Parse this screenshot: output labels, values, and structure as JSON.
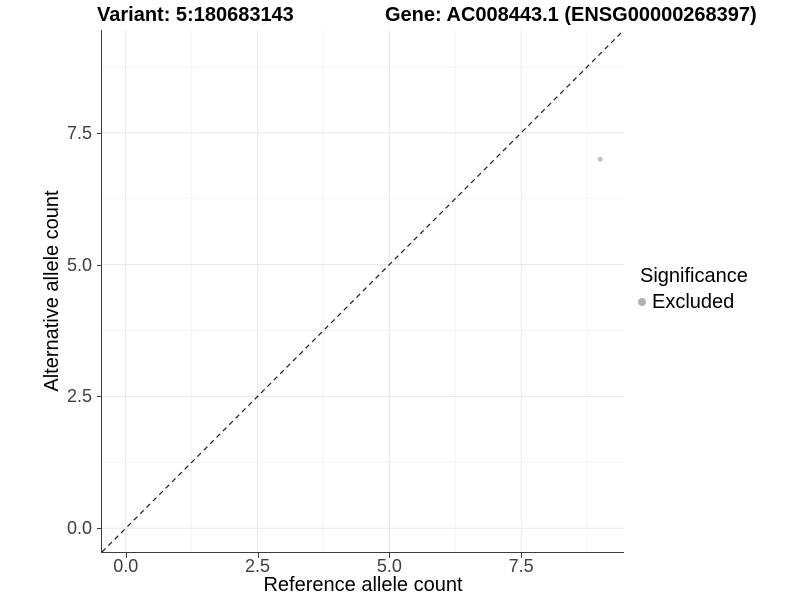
{
  "chart_data": {
    "type": "scatter",
    "titles": {
      "variant": "Variant: 5:180683143",
      "gene": "Gene: AC008443.1 (ENSG00000268397)"
    },
    "xlabel": "Reference allele count",
    "ylabel": "Alternative allele count",
    "xlim": [
      -0.45,
      9.45
    ],
    "ylim": [
      -0.45,
      9.45
    ],
    "ticks": {
      "values": [
        0,
        2.5,
        5,
        7.5
      ],
      "labels": [
        "0.0",
        "2.5",
        "5.0",
        "7.5"
      ],
      "minor": [
        1.25,
        3.75,
        6.25,
        8.75
      ]
    },
    "points": [
      {
        "x": 9,
        "y": 7,
        "significance": "Excluded"
      }
    ],
    "reference_line": {
      "type": "identity",
      "slope": 1,
      "intercept": 0,
      "style": "dashed"
    },
    "legend": {
      "title": "Significance",
      "position": "right",
      "entries": [
        {
          "label": "Excluded",
          "color": "#b0b0b0",
          "marker": "circle"
        }
      ]
    },
    "grid": true,
    "colors": {
      "background": "#ffffff",
      "point": "#c2c2c2",
      "legend_marker": "#b0b0b0",
      "grid_major": "#e8e8e8",
      "grid_minor": "#f3f3f3",
      "axis_line": "#3c3c3c",
      "tick_text": "#404040",
      "title_text": "#000000",
      "reference_line": "#1a1a1a"
    }
  }
}
